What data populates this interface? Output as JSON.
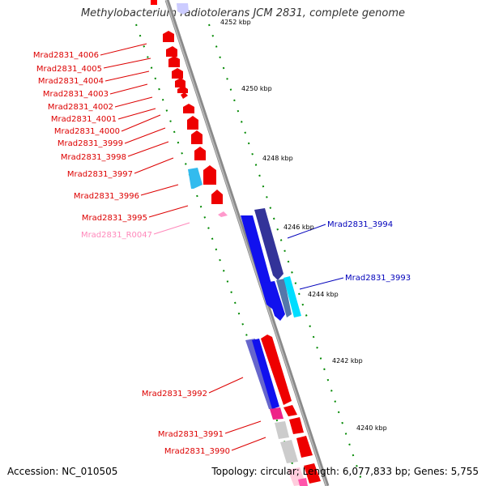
{
  "title": "Methylobacterium radiotolerans JCM 2831, complete genome",
  "footer": {
    "accession": "Accession: NC_010505",
    "topology": "Topology: circular; Length: 6,077,833 bp; Genes: 5,755"
  },
  "colors": {
    "red_gene": "#ff0000",
    "blue_gene": "#0000ff",
    "cyan_gene": "#00e0ff",
    "pink_gene": "#ff99cc",
    "grey_gene": "#c8c8c8",
    "backbone": "#888888",
    "tick": "#008800"
  },
  "ticks": [
    {
      "label": "4252 kbp"
    },
    {
      "label": "4250 kbp"
    },
    {
      "label": "4248 kbp"
    },
    {
      "label": "4246 kbp"
    },
    {
      "label": "4244 kbp"
    },
    {
      "label": "4242 kbp"
    },
    {
      "label": "4240 kbp"
    }
  ],
  "genes_left": [
    {
      "label": "Mrad2831_4006",
      "color": "#dd0000"
    },
    {
      "label": "Mrad2831_4005",
      "color": "#dd0000"
    },
    {
      "label": "Mrad2831_4004",
      "color": "#dd0000"
    },
    {
      "label": "Mrad2831_4003",
      "color": "#dd0000"
    },
    {
      "label": "Mrad2831_4002",
      "color": "#dd0000"
    },
    {
      "label": "Mrad2831_4001",
      "color": "#dd0000"
    },
    {
      "label": "Mrad2831_4000",
      "color": "#dd0000"
    },
    {
      "label": "Mrad2831_3999",
      "color": "#dd0000"
    },
    {
      "label": "Mrad2831_3998",
      "color": "#dd0000"
    },
    {
      "label": "Mrad2831_3997",
      "color": "#dd0000"
    },
    {
      "label": "Mrad2831_3996",
      "color": "#dd0000"
    },
    {
      "label": "Mrad2831_3995",
      "color": "#dd0000"
    },
    {
      "label": "Mrad2831_R0047",
      "color": "#ff88bb"
    },
    {
      "label": "Mrad2831_3992",
      "color": "#dd0000"
    },
    {
      "label": "Mrad2831_3991",
      "color": "#dd0000"
    },
    {
      "label": "Mrad2831_3990",
      "color": "#dd0000"
    }
  ],
  "genes_right": [
    {
      "label": "Mrad2831_3994",
      "color": "#0000bb"
    },
    {
      "label": "Mrad2831_3993",
      "color": "#0000bb"
    }
  ]
}
